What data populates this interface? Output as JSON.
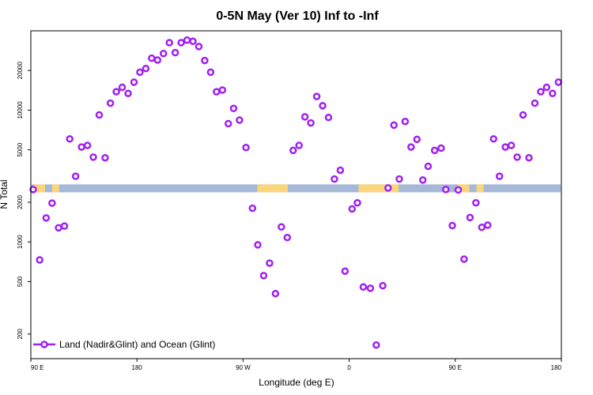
{
  "chart_data": {
    "type": "scatter",
    "title": "0-5N May (Ver 10)   Inf to -Inf",
    "xlabel": "Longitude (deg E)",
    "ylabel": "N Total",
    "x_ticks": [
      {
        "value": 0,
        "label": "90 E"
      },
      {
        "value": 90,
        "label": "180"
      },
      {
        "value": 180,
        "label": "90 W"
      },
      {
        "value": 270,
        "label": "0"
      },
      {
        "value": 360,
        "label": "90 E"
      },
      {
        "value": 450,
        "label": "180"
      }
    ],
    "y_ticks": [
      200,
      500,
      1000,
      2000,
      5000,
      10000,
      20000
    ],
    "xlim": [
      0,
      450
    ],
    "ylim_log": [
      130,
      40000
    ],
    "legend": {
      "position": "bottom-left",
      "label": "Land (Nadir&Glint) and Ocean (Glint)"
    },
    "colors": {
      "marker": "#a020f0",
      "ocean_band": "#a5b8d8",
      "land_band": "#fad57a",
      "frame": "#000000"
    },
    "map_band": {
      "value_center": 2550,
      "land_segments": [
        [
          2,
          12
        ],
        [
          18,
          24
        ],
        [
          192,
          218
        ],
        [
          278,
          312
        ],
        [
          362,
          372
        ],
        [
          378,
          384
        ]
      ]
    },
    "series": [
      {
        "name": "Land (Nadir&Glint) and Ocean (Glint)",
        "x": [
          2,
          7.5,
          13,
          18,
          23.5,
          28.5,
          33,
          38,
          43,
          48,
          53,
          58,
          63,
          67.5,
          72.5,
          77.5,
          82.5,
          87.5,
          92.5,
          97.5,
          102.5,
          107.5,
          112.5,
          117.5,
          122.5,
          127.5,
          132.5,
          137.5,
          142.5,
          147.5,
          152.5,
          157.5,
          162.5,
          167.5,
          172,
          177,
          182.5,
          188,
          192.5,
          197.5,
          202.5,
          207.5,
          212.5,
          217.5,
          222.5,
          227.5,
          232.5,
          237.5,
          242.5,
          247.5,
          252.5,
          257.5,
          262.5,
          266.5,
          272.5,
          277,
          282,
          288,
          293,
          298.5,
          303,
          308,
          312.5,
          317.5,
          322.5,
          327.5,
          332.5,
          337,
          342.5,
          348,
          352,
          357.5,
          362.5,
          367.5,
          372.5,
          377.5,
          382.5,
          387.5,
          392.5,
          397.5,
          402.5,
          407.5,
          412.5,
          417.5,
          422.5,
          427.5,
          432.5,
          437.5,
          442.5,
          447.5
        ],
        "values": [
          2500,
          730,
          1520,
          1970,
          1280,
          1320,
          6050,
          3150,
          5250,
          5400,
          4400,
          9200,
          4350,
          11300,
          13800,
          14900,
          13400,
          16300,
          19400,
          20700,
          24800,
          24000,
          26900,
          32500,
          27300,
          32500,
          34000,
          33300,
          30400,
          23800,
          19400,
          13800,
          14200,
          7900,
          10300,
          8400,
          5200,
          1800,
          950,
          555,
          690,
          405,
          1300,
          1080,
          4950,
          5400,
          8900,
          8000,
          12700,
          10800,
          8800,
          3000,
          3500,
          600,
          1780,
          1980,
          455,
          445,
          165,
          465,
          2570,
          7700,
          3000,
          8200,
          5250,
          6000,
          2950,
          3750,
          4950,
          5150,
          2500,
          1330,
          2480,
          740,
          1530,
          1980,
          1290,
          1340,
          6050,
          3150,
          5250,
          5400,
          4400,
          9200,
          4350,
          11300,
          13800,
          14900,
          13400,
          16300
        ]
      }
    ]
  }
}
